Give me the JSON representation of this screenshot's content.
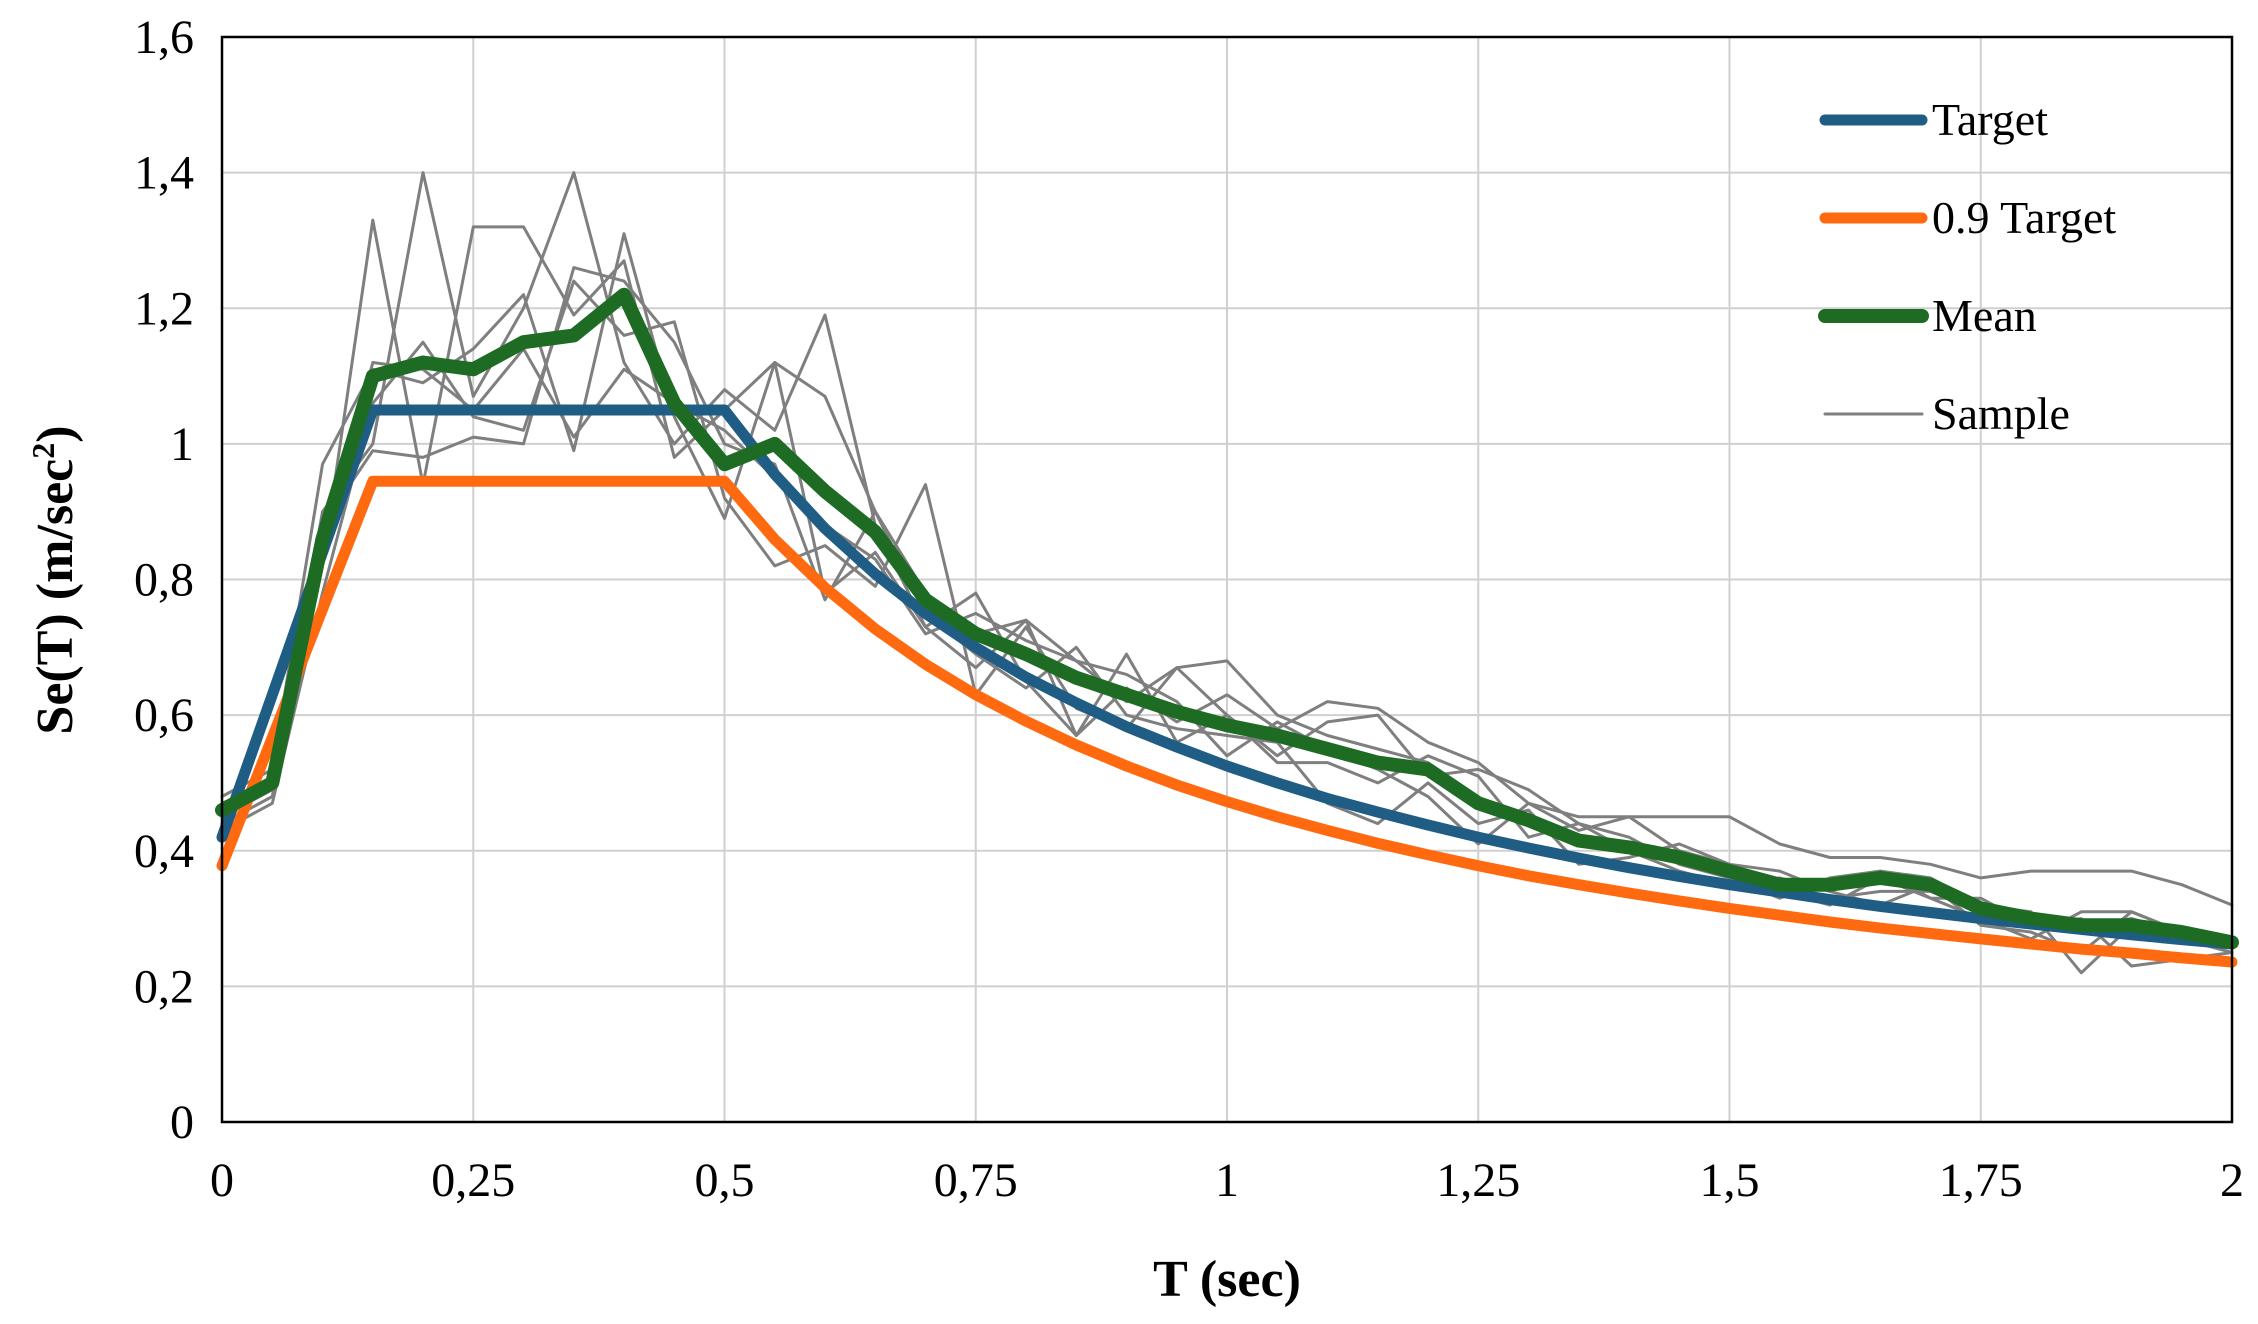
{
  "chart_data": {
    "type": "line",
    "title": "",
    "xlabel": "T (sec)",
    "ylabel": "Se(T) (m/sec",
    "ylabel_sup": "2",
    "ylabel_close": ")",
    "xlim": [
      0,
      2
    ],
    "ylim": [
      0,
      1.6
    ],
    "grid": true,
    "legend_position": "top-right",
    "x_ticks": [
      0,
      0.25,
      0.5,
      0.75,
      1,
      1.25,
      1.5,
      1.75,
      2
    ],
    "x_tick_labels": [
      "0",
      "0,25",
      "0,5",
      "0,75",
      "1",
      "1,25",
      "1,5",
      "1,75",
      "2"
    ],
    "y_ticks": [
      0,
      0.2,
      0.4,
      0.6,
      0.8,
      1.0,
      1.2,
      1.4,
      1.6
    ],
    "y_tick_labels": [
      "0",
      "0,2",
      "0,4",
      "0,6",
      "0,8",
      "1",
      "1,2",
      "1,4",
      "1,6"
    ],
    "x": [
      0,
      0.05,
      0.1,
      0.15,
      0.2,
      0.25,
      0.3,
      0.35,
      0.4,
      0.45,
      0.5,
      0.55,
      0.6,
      0.65,
      0.7,
      0.75,
      0.8,
      0.85,
      0.9,
      0.95,
      1.0,
      1.05,
      1.1,
      1.15,
      1.2,
      1.25,
      1.3,
      1.35,
      1.4,
      1.45,
      1.5,
      1.55,
      1.6,
      1.65,
      1.7,
      1.75,
      1.8,
      1.85,
      1.9,
      1.95,
      2.0
    ],
    "series": [
      {
        "name": "Target",
        "color": "#1f5d85",
        "width": 11,
        "values": [
          0.42,
          0.63,
          0.84,
          1.05,
          1.05,
          1.05,
          1.05,
          1.05,
          1.05,
          1.05,
          1.05,
          0.955,
          0.875,
          0.808,
          0.75,
          0.7,
          0.656,
          0.618,
          0.583,
          0.553,
          0.525,
          0.5,
          0.477,
          0.457,
          0.438,
          0.42,
          0.404,
          0.389,
          0.375,
          0.362,
          0.35,
          0.339,
          0.328,
          0.318,
          0.309,
          0.3,
          0.292,
          0.284,
          0.276,
          0.269,
          0.2625
        ]
      },
      {
        "name": "0.9 Target",
        "color": "#ff6a10",
        "width": 11,
        "values": [
          0.378,
          0.567,
          0.756,
          0.945,
          0.945,
          0.945,
          0.945,
          0.945,
          0.945,
          0.945,
          0.945,
          0.859,
          0.788,
          0.727,
          0.675,
          0.63,
          0.591,
          0.556,
          0.525,
          0.497,
          0.4725,
          0.45,
          0.43,
          0.411,
          0.394,
          0.378,
          0.363,
          0.35,
          0.3375,
          0.326,
          0.315,
          0.305,
          0.295,
          0.286,
          0.278,
          0.27,
          0.2625,
          0.255,
          0.249,
          0.242,
          0.236
        ]
      },
      {
        "name": "Mean",
        "color": "#1e6b24",
        "width": 14,
        "values": [
          0.46,
          0.5,
          0.86,
          1.1,
          1.12,
          1.11,
          1.15,
          1.16,
          1.22,
          1.06,
          0.97,
          1.0,
          0.93,
          0.87,
          0.77,
          0.72,
          0.69,
          0.655,
          0.63,
          0.605,
          0.585,
          0.57,
          0.55,
          0.53,
          0.52,
          0.47,
          0.445,
          0.415,
          0.405,
          0.39,
          0.37,
          0.35,
          0.35,
          0.36,
          0.35,
          0.315,
          0.3,
          0.29,
          0.29,
          0.28,
          0.265
        ]
      },
      {
        "name": "Sample",
        "color": "#7f7f7f",
        "width": 3,
        "values": [
          0.47,
          0.5,
          0.82,
          1.33,
          0.94,
          1.32,
          1.32,
          1.19,
          1.27,
          0.98,
          1.05,
          1.12,
          1.07,
          0.9,
          0.78,
          0.72,
          0.74,
          0.68,
          0.62,
          0.67,
          0.68,
          0.6,
          0.57,
          0.55,
          0.53,
          0.47,
          0.45,
          0.42,
          0.41,
          0.39,
          0.37,
          0.35,
          0.33,
          0.34,
          0.34,
          0.31,
          0.29,
          0.29,
          0.3,
          0.28,
          0.26
        ]
      },
      {
        "name": "",
        "color": "#7f7f7f",
        "width": 3,
        "values": [
          0.44,
          0.48,
          0.9,
          1.0,
          1.4,
          1.07,
          1.2,
          1.4,
          1.12,
          1.0,
          1.08,
          1.02,
          1.19,
          0.88,
          0.73,
          0.78,
          0.65,
          0.57,
          0.69,
          0.56,
          0.6,
          0.54,
          0.59,
          0.6,
          0.51,
          0.52,
          0.49,
          0.44,
          0.42,
          0.38,
          0.36,
          0.33,
          0.36,
          0.37,
          0.36,
          0.32,
          0.31,
          0.22,
          0.29,
          0.27,
          0.25
        ]
      },
      {
        "name": "",
        "color": "#7f7f7f",
        "width": 3,
        "values": [
          0.48,
          0.52,
          0.97,
          1.11,
          1.09,
          1.14,
          1.22,
          0.99,
          1.31,
          1.04,
          0.89,
          1.12,
          0.78,
          0.84,
          0.73,
          0.67,
          0.74,
          0.57,
          0.64,
          0.59,
          0.63,
          0.58,
          0.62,
          0.61,
          0.56,
          0.53,
          0.47,
          0.43,
          0.45,
          0.4,
          0.38,
          0.34,
          0.32,
          0.36,
          0.33,
          0.3,
          0.27,
          0.31,
          0.31,
          0.28,
          0.27
        ]
      },
      {
        "name": "",
        "color": "#7f7f7f",
        "width": 3,
        "values": [
          0.43,
          0.47,
          0.78,
          1.06,
          1.15,
          1.04,
          1.02,
          1.24,
          1.16,
          1.18,
          0.92,
          0.82,
          0.85,
          0.79,
          0.94,
          0.63,
          0.73,
          0.61,
          0.58,
          0.67,
          0.6,
          0.53,
          0.53,
          0.5,
          0.54,
          0.51,
          0.42,
          0.44,
          0.4,
          0.37,
          0.35,
          0.36,
          0.34,
          0.37,
          0.33,
          0.33,
          0.29,
          0.3,
          0.23,
          0.24,
          0.25
        ]
      },
      {
        "name": "",
        "color": "#7f7f7f",
        "width": 3,
        "values": [
          0.45,
          0.49,
          0.88,
          0.99,
          0.98,
          1.01,
          1.0,
          1.26,
          1.24,
          1.15,
          1.0,
          0.97,
          0.77,
          0.9,
          0.75,
          0.69,
          0.64,
          0.7,
          0.6,
          0.58,
          0.57,
          0.56,
          0.47,
          0.44,
          0.5,
          0.44,
          0.46,
          0.38,
          0.39,
          0.41,
          0.38,
          0.37,
          0.34,
          0.32,
          0.35,
          0.29,
          0.28,
          0.25,
          0.31,
          0.28,
          0.26
        ]
      },
      {
        "name": "",
        "color": "#7f7f7f",
        "width": 3,
        "values": [
          0.46,
          0.51,
          0.84,
          1.12,
          1.11,
          1.05,
          1.14,
          1.01,
          1.11,
          1.06,
          1.02,
          0.95,
          0.88,
          0.83,
          0.72,
          0.75,
          0.71,
          0.68,
          0.66,
          0.62,
          0.54,
          0.59,
          0.55,
          0.52,
          0.48,
          0.41,
          0.47,
          0.45,
          0.45,
          0.45,
          0.45,
          0.41,
          0.39,
          0.39,
          0.38,
          0.36,
          0.37,
          0.37,
          0.37,
          0.35,
          0.32
        ]
      }
    ],
    "legend": [
      {
        "label": "Target",
        "color": "#1f5d85",
        "width": 11
      },
      {
        "label": "0.9 Target",
        "color": "#ff6a10",
        "width": 11
      },
      {
        "label": "Mean",
        "color": "#1e6b24",
        "width": 14
      },
      {
        "label": "Sample",
        "color": "#7f7f7f",
        "width": 3
      }
    ]
  }
}
